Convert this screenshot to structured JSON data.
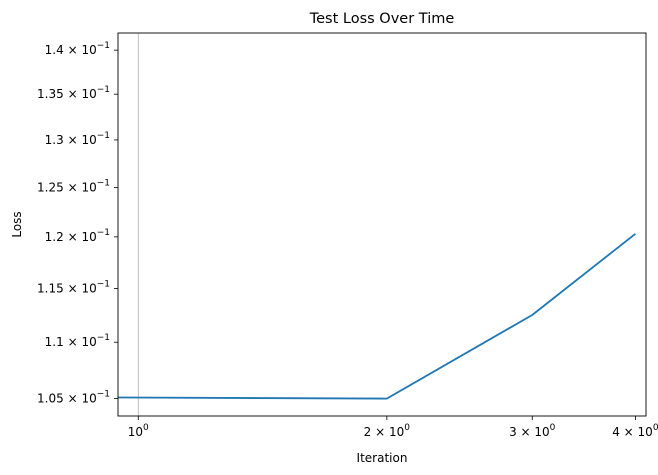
{
  "chart_data": {
    "type": "line",
    "title": "Test Loss Over Time",
    "xlabel": "Iteration",
    "ylabel": "Loss",
    "xscale": "log",
    "yscale": "log",
    "xlim": [
      0.945,
      4.12
    ],
    "ylim": [
      0.1035,
      0.142
    ],
    "grid": "x-major-only",
    "series": [
      {
        "x": [
          0.9,
          2,
          3,
          4
        ],
        "y": [
          0.1051,
          0.105,
          0.1125,
          0.1203
        ],
        "color": "#1f77b4"
      }
    ],
    "x_ticks": [
      {
        "value": 1,
        "base": "10",
        "exp": "0",
        "prefix": ""
      },
      {
        "value": 2,
        "base": "10",
        "exp": "0",
        "prefix": "2 × "
      },
      {
        "value": 3,
        "base": "10",
        "exp": "0",
        "prefix": "3 × "
      },
      {
        "value": 4,
        "base": "10",
        "exp": "0",
        "prefix": "4 × "
      }
    ],
    "y_ticks": [
      {
        "value": 0.105,
        "prefix": "1.05 × ",
        "base": "10",
        "exp": "−1"
      },
      {
        "value": 0.11,
        "prefix": "1.1 × ",
        "base": "10",
        "exp": "−1"
      },
      {
        "value": 0.115,
        "prefix": "1.15 × ",
        "base": "10",
        "exp": "−1"
      },
      {
        "value": 0.12,
        "prefix": "1.2 × ",
        "base": "10",
        "exp": "−1"
      },
      {
        "value": 0.125,
        "prefix": "1.25 × ",
        "base": "10",
        "exp": "−1"
      },
      {
        "value": 0.13,
        "prefix": "1.3 × ",
        "base": "10",
        "exp": "−1"
      },
      {
        "value": 0.135,
        "prefix": "1.35 × ",
        "base": "10",
        "exp": "−1"
      },
      {
        "value": 0.14,
        "prefix": "1.4 × ",
        "base": "10",
        "exp": "−1"
      }
    ]
  }
}
